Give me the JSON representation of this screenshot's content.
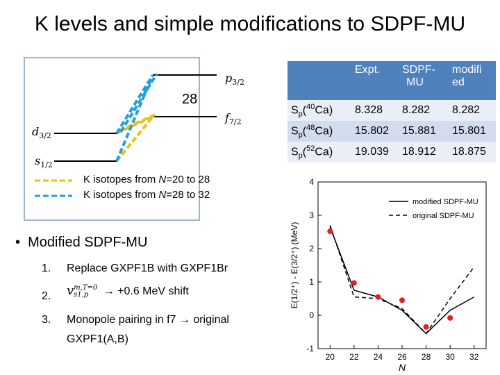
{
  "title": "K levels and simple modifications to SDPF-MU",
  "levels": {
    "p32": "p",
    "p32_sub": "3/2",
    "f72": "f",
    "f72_sub": "7/2",
    "d32": "d",
    "d32_sub": "3/2",
    "s12": "s",
    "s12_sub": "1/2",
    "gap": "28"
  },
  "legend": {
    "yellow_pre": "K isotopes from ",
    "yellow_n": "N",
    "yellow_post": "=20 to 28",
    "blue_pre": "K isotopes from ",
    "blue_n": "N",
    "blue_post": "=28 to 32",
    "yellow_color": "#e8c01a",
    "blue_color": "#1fa1e0"
  },
  "table": {
    "headers": [
      "",
      "Expt.",
      "SDPF-MU",
      "modified"
    ],
    "header_lines": [
      [
        "Expt."
      ],
      [
        "SDPF-",
        "MU"
      ],
      [
        "modifi",
        "ed"
      ]
    ],
    "rows": [
      {
        "sym": "S",
        "sub": "p",
        "iso_pre": "(",
        "mass": "40",
        "iso": "Ca)",
        "expt": "8.328",
        "sdpfmu": "8.282",
        "modified": "8.282"
      },
      {
        "sym": "S",
        "sub": "p",
        "iso_pre": "(",
        "mass": "48",
        "iso": "Ca)",
        "expt": "15.802",
        "sdpfmu": "15.881",
        "modified": "15.801"
      },
      {
        "sym": "S",
        "sub": "p",
        "iso_pre": "(",
        "mass": "52",
        "iso": "Ca)",
        "expt": "19.039",
        "sdpfmu": "18.912",
        "modified": "18.875"
      }
    ]
  },
  "bullets": {
    "main": "Modified SDPF-MU",
    "items": [
      {
        "num": "1.",
        "text": "Replace GXPF1B with GXPF1Br"
      },
      {
        "num": "2.",
        "text_math": "v",
        "math_sup": "m,T=0",
        "math_sub": "s1,p",
        "text": "→ +0.6 MeV shift"
      },
      {
        "num": "3.",
        "text": "Monopole pairing in f7 → original",
        "text2": "GXPF1(A,B)"
      }
    ]
  },
  "chart_data": {
    "type": "line",
    "title": "",
    "xlabel": "N",
    "ylabel": "E(1/2⁺) - E(3/2⁺) (MeV)",
    "xlim": [
      19,
      33
    ],
    "ylim": [
      -1,
      4
    ],
    "xticks": [
      20,
      22,
      24,
      26,
      28,
      30,
      32
    ],
    "yticks": [
      -1,
      0,
      1,
      2,
      3,
      4
    ],
    "legend_position": "top-right",
    "series": [
      {
        "name": "modified SDPF-MU",
        "style": "solid",
        "x": [
          20,
          22,
          24,
          26,
          28,
          30,
          32
        ],
        "y": [
          2.65,
          0.75,
          0.55,
          0.15,
          -0.55,
          0.15,
          0.55
        ]
      },
      {
        "name": "original SDPF-MU",
        "style": "dashed",
        "x": [
          20,
          22,
          24,
          26,
          28,
          30,
          32
        ],
        "y": [
          2.7,
          0.55,
          0.5,
          0.2,
          -0.55,
          0.5,
          1.45
        ]
      },
      {
        "name": "",
        "style": "points",
        "color": "#e02020",
        "x": [
          20,
          22,
          24,
          26,
          28,
          30
        ],
        "y": [
          2.52,
          0.97,
          0.55,
          0.45,
          -0.35,
          -0.08
        ]
      }
    ]
  }
}
